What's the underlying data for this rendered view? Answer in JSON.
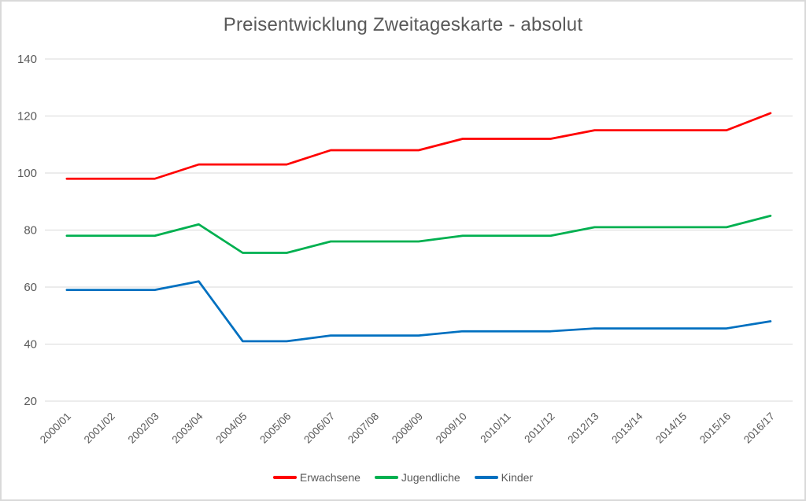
{
  "window": {
    "background": "#ffffff",
    "frame_border_color": "#d9d9d9"
  },
  "chart_data": {
    "type": "line",
    "title": "Preisentwicklung Zweitageskarte - absolut",
    "title_color": "#595959",
    "axis_label_color": "#595959",
    "gridline_color": "#d9d9d9",
    "grid": true,
    "legend_position": "bottom",
    "xlabel": "",
    "ylabel": "",
    "ylim": [
      20,
      140
    ],
    "yticks": [
      20,
      40,
      60,
      80,
      100,
      120,
      140
    ],
    "categories": [
      "2000/01",
      "2001/02",
      "2002/03",
      "2003/04",
      "2004/05",
      "2005/06",
      "2006/07",
      "2007/08",
      "2008/09",
      "2009/10",
      "2010/11",
      "2011/12",
      "2012/13",
      "2013/14",
      "2014/15",
      "2015/16",
      "2016/17"
    ],
    "series": [
      {
        "name": "Erwachsene",
        "color": "#ff0000",
        "values": [
          98,
          98,
          98,
          103,
          103,
          103,
          108,
          108,
          108,
          112,
          112,
          112,
          115,
          115,
          115,
          115,
          121
        ]
      },
      {
        "name": "Jugendliche",
        "color": "#00b050",
        "values": [
          78,
          78,
          78,
          82,
          72,
          72,
          76,
          76,
          76,
          78,
          78,
          78,
          81,
          81,
          81,
          81,
          85
        ]
      },
      {
        "name": "Kinder",
        "color": "#0070c0",
        "values": [
          59,
          59,
          59,
          62,
          41,
          41,
          43,
          43,
          43,
          44.5,
          44.5,
          44.5,
          45.5,
          45.5,
          45.5,
          45.5,
          48
        ]
      }
    ]
  }
}
